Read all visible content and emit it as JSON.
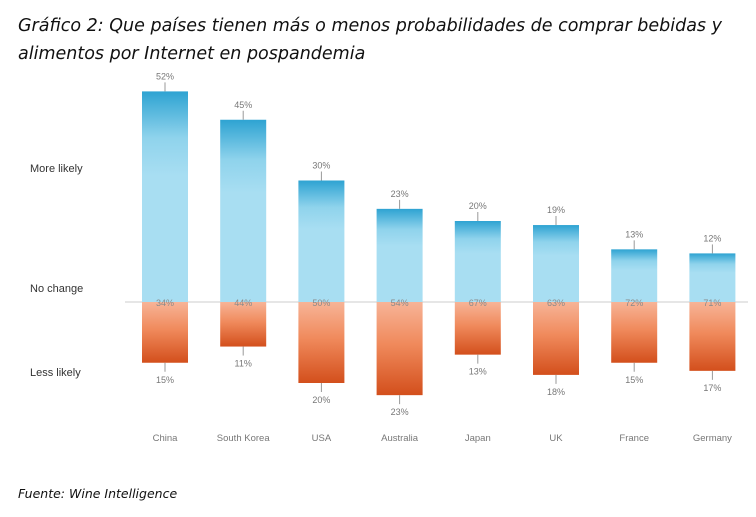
{
  "title": "Gráfico 2: Que países tienen más o menos probabilidades de comprar bebidas y alimentos por Internet en pospandemia",
  "source": "Fuente: Wine Intelligence",
  "row_labels": {
    "more": "More likely",
    "none": "No change",
    "less": "Less likely"
  },
  "colors": {
    "more_top": "#3aa9d6",
    "more_body": "#a6dcf0",
    "less_top": "#f3a07c",
    "less_bottom": "#d95420",
    "baseline": "#cccccc",
    "label": "#777777"
  },
  "chart_data": {
    "type": "bar",
    "categories": [
      "China",
      "South Korea",
      "USA",
      "Australia",
      "Japan",
      "UK",
      "France",
      "Germany"
    ],
    "series": [
      {
        "name": "More likely",
        "values": [
          52,
          45,
          30,
          23,
          20,
          19,
          13,
          12
        ]
      },
      {
        "name": "No change",
        "values": [
          34,
          44,
          50,
          54,
          67,
          63,
          72,
          71
        ]
      },
      {
        "name": "Less likely",
        "values": [
          15,
          11,
          20,
          23,
          13,
          18,
          15,
          17
        ]
      }
    ],
    "value_format": "%",
    "stacking": "diverging"
  }
}
